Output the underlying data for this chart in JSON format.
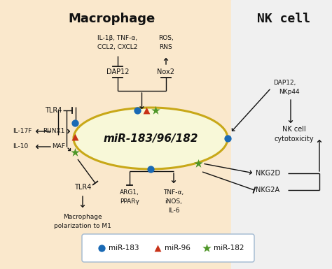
{
  "title_macro": "Macrophage",
  "title_nk": "NK cell",
  "center_label": "miR-183/96/182",
  "bg_macro_color": "#fae8cc",
  "bg_nk_color": "#f0f0f0",
  "ellipse_fill": "#f8f8d8",
  "ellipse_edge": "#c8a818",
  "blue_color": "#1a6ab5",
  "red_color": "#c83218",
  "green_color": "#4e9628",
  "legend_edge": "#a0b8d0",
  "text_color": "#111111",
  "lw": 1.0,
  "figsize": [
    4.74,
    3.85
  ],
  "dpi": 100
}
